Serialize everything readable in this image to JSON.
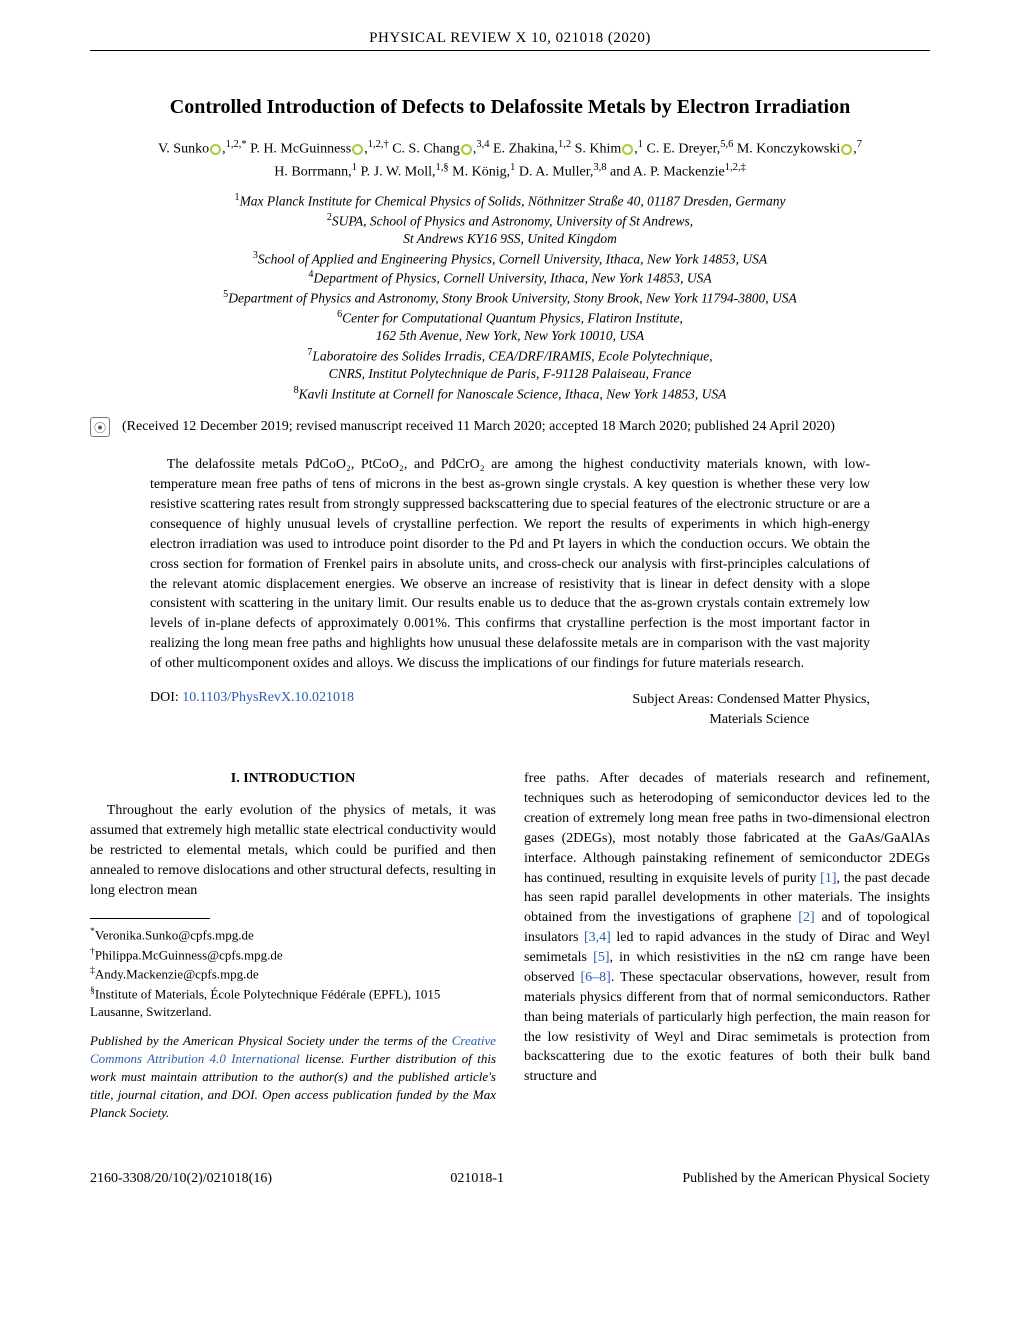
{
  "journal_header": "PHYSICAL REVIEW X 10, 021018 (2020)",
  "title": "Controlled Introduction of Defects to Delafossite Metals by Electron Irradiation",
  "authors_line1_parts": {
    "a1": "V. Sunko",
    "a1_sup": "1,2,*",
    "a2": " P. H. McGuinness",
    "a2_sup": "1,2,†",
    "a3": " C. S. Chang",
    "a3_sup": "3,4",
    "a4": " E. Zhakina,",
    "a4_sup": "1,2",
    "a5": " S. Khim",
    "a5_sup": "1",
    "a6": " C. E. Dreyer,",
    "a6_sup": "5,6",
    "a7": " M. Konczykowski",
    "a7_sup": "7"
  },
  "authors_line2_parts": {
    "b1": "H. Borrmann,",
    "b1_sup": "1",
    "b2": " P. J. W. Moll,",
    "b2_sup": "1,§",
    "b3": " M. König,",
    "b3_sup": "1",
    "b4": " D. A. Muller,",
    "b4_sup": "3,8",
    "b5": " and A. P. Mackenzie",
    "b5_sup": "1,2,‡"
  },
  "affiliations": {
    "l1": "Max Planck Institute for Chemical Physics of Solids, Nöthnitzer Straße 40, 01187 Dresden, Germany",
    "l2": "SUPA, School of Physics and Astronomy, University of St Andrews,",
    "l2b": "St Andrews KY16 9SS, United Kingdom",
    "l3": "School of Applied and Engineering Physics, Cornell University, Ithaca, New York 14853, USA",
    "l4": "Department of Physics, Cornell University, Ithaca, New York 14853, USA",
    "l5": "Department of Physics and Astronomy, Stony Brook University, Stony Brook, New York 11794-3800, USA",
    "l6": "Center for Computational Quantum Physics, Flatiron Institute,",
    "l6b": "162 5th Avenue, New York, New York 10010, USA",
    "l7": "Laboratoire des Solides Irradis, CEA/DRF/IRAMIS, Ecole Polytechnique,",
    "l7b": "CNRS, Institut Polytechnique de Paris, F-91128 Palaiseau, France",
    "l8": "Kavli Institute at Cornell for Nanoscale Science, Ithaca, New York 14853, USA"
  },
  "dates": "(Received 12 December 2019; revised manuscript received 11 March 2020; accepted 18 March 2020; published 24 April 2020)",
  "abstract": "The delafossite metals PdCoO₂, PtCoO₂, and PdCrO₂ are among the highest conductivity materials known, with low-temperature mean free paths of tens of microns in the best as-grown single crystals. A key question is whether these very low resistive scattering rates result from strongly suppressed backscattering due to special features of the electronic structure or are a consequence of highly unusual levels of crystalline perfection. We report the results of experiments in which high-energy electron irradiation was used to introduce point disorder to the Pd and Pt layers in which the conduction occurs. We obtain the cross section for formation of Frenkel pairs in absolute units, and cross-check our analysis with first-principles calculations of the relevant atomic displacement energies. We observe an increase of resistivity that is linear in defect density with a slope consistent with scattering in the unitary limit. Our results enable us to deduce that the as-grown crystals contain extremely low levels of in-plane defects of approximately 0.001%. This confirms that crystalline perfection is the most important factor in realizing the long mean free paths and highlights how unusual these delafossite metals are in comparison with the vast majority of other multicomponent oxides and alloys. We discuss the implications of our findings for future materials research.",
  "doi_label": "DOI: ",
  "doi": "10.1103/PhysRevX.10.021018",
  "subject_label": "Subject Areas:  ",
  "subject_1": "Condensed Matter Physics,",
  "subject_2": "Materials Science",
  "section_heading": "I. INTRODUCTION",
  "col1_para": "Throughout the early evolution of the physics of metals, it was assumed that extremely high metallic state electrical conductivity would be restricted to elemental metals, which could be purified and then annealed to remove dislocations and other structural defects, resulting in long electron mean",
  "footnotes": {
    "f1": "Veronika.Sunko@cpfs.mpg.de",
    "f2": "Philippa.McGuinness@cpfs.mpg.de",
    "f3": "Andy.Mackenzie@cpfs.mpg.de",
    "f4": "Institute of Materials, École Polytechnique Fédérale (EPFL), 1015 Lausanne, Switzerland."
  },
  "license_pre": "Published by the American Physical Society under the terms of the ",
  "license_link": "Creative Commons Attribution 4.0 International",
  "license_post": " license. Further distribution of this work must maintain attribution to the author(s) and the published article's title, journal citation, and DOI. Open access publication funded by the Max Planck Society.",
  "col2": {
    "p1a": "free paths. After decades of materials research and refinement, techniques such as heterodoping of semiconductor devices led to the creation of extremely long mean free paths in two-dimensional electron gases (2DEGs), most notably those fabricated at the GaAs/GaAlAs interface. Although painstaking refinement of semiconductor 2DEGs has continued, resulting in exquisite levels of purity ",
    "r1": "[1]",
    "p1b": ", the past decade has seen rapid parallel developments in other materials. The insights obtained from the investigations of graphene ",
    "r2": "[2]",
    "p1c": " and of topological insulators ",
    "r34": "[3,4]",
    "p1d": " led to rapid advances in the study of Dirac and Weyl semimetals ",
    "r5": "[5]",
    "p1e": ", in which resistivities in the nΩ cm range have been observed ",
    "r68": "[6–8]",
    "p1f": ". These spectacular observations, however, result from materials physics different from that of normal semiconductors. Rather than being materials of particularly high perfection, the main reason for the low resistivity of Weyl and Dirac semimetals is protection from backscattering due to the exotic features of both their bulk band structure and"
  },
  "footer": {
    "left": "2160-3308/20/10(2)/021018(16)",
    "center": "021018-1",
    "right": "Published by the American Physical Society"
  }
}
